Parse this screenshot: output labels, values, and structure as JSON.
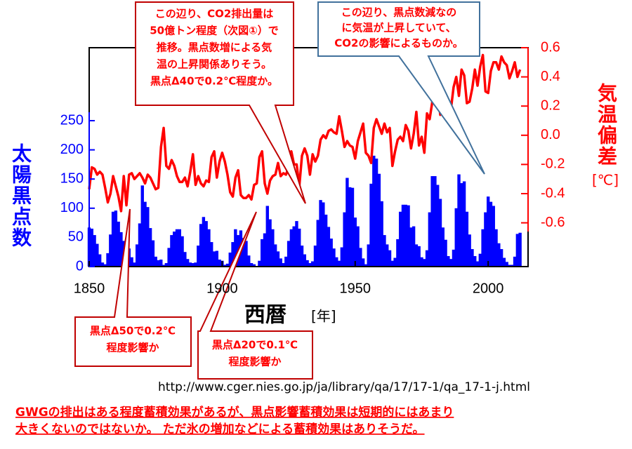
{
  "chart_data": {
    "type": "area",
    "xlabel": "西暦",
    "xlabel_unit": "[年]",
    "ylabel": "太陽黒点数",
    "y2label": "気温偏差",
    "y2label_unit": "[℃]",
    "x": [
      1850,
      1851,
      1852,
      1853,
      1854,
      1855,
      1856,
      1857,
      1858,
      1859,
      1860,
      1861,
      1862,
      1863,
      1864,
      1865,
      1866,
      1867,
      1868,
      1869,
      1870,
      1871,
      1872,
      1873,
      1874,
      1875,
      1876,
      1877,
      1878,
      1879,
      1880,
      1881,
      1882,
      1883,
      1884,
      1885,
      1886,
      1887,
      1888,
      1889,
      1890,
      1891,
      1892,
      1893,
      1894,
      1895,
      1896,
      1897,
      1898,
      1899,
      1900,
      1901,
      1902,
      1903,
      1904,
      1905,
      1906,
      1907,
      1908,
      1909,
      1910,
      1911,
      1912,
      1913,
      1914,
      1915,
      1916,
      1917,
      1918,
      1919,
      1920,
      1921,
      1922,
      1923,
      1924,
      1925,
      1926,
      1927,
      1928,
      1929,
      1930,
      1931,
      1932,
      1933,
      1934,
      1935,
      1936,
      1937,
      1938,
      1939,
      1940,
      1941,
      1942,
      1943,
      1944,
      1945,
      1946,
      1947,
      1948,
      1949,
      1950,
      1951,
      1952,
      1953,
      1954,
      1955,
      1956,
      1957,
      1958,
      1959,
      1960,
      1961,
      1962,
      1963,
      1964,
      1965,
      1966,
      1967,
      1968,
      1969,
      1970,
      1971,
      1972,
      1973,
      1974,
      1975,
      1976,
      1977,
      1978,
      1979,
      1980,
      1981,
      1982,
      1983,
      1984,
      1985,
      1986,
      1987,
      1988,
      1989,
      1990,
      1991,
      1992,
      1993,
      1994,
      1995,
      1996,
      1997,
      1998,
      1999,
      2000,
      2001,
      2002,
      2003,
      2004,
      2005,
      2006,
      2007,
      2008,
      2009,
      2010,
      2011,
      2012
    ],
    "series": [
      {
        "color": "#0000ff",
        "values": [
          67,
          65,
          54,
          39,
          21,
          7,
          4,
          23,
          55,
          94,
          96,
          77,
          59,
          44,
          47,
          31,
          16,
          7,
          38,
          74,
          139,
          111,
          102,
          66,
          45,
          17,
          11,
          12,
          3,
          6,
          32,
          54,
          60,
          64,
          64,
          52,
          25,
          13,
          7,
          6,
          7,
          36,
          73,
          85,
          78,
          64,
          42,
          26,
          27,
          12,
          10,
          3,
          5,
          24,
          42,
          64,
          54,
          62,
          49,
          44,
          19,
          6,
          4,
          1,
          10,
          47,
          57,
          104,
          81,
          64,
          38,
          26,
          14,
          6,
          17,
          44,
          64,
          69,
          78,
          65,
          36,
          21,
          11,
          6,
          9,
          36,
          80,
          114,
          110,
          89,
          68,
          48,
          31,
          16,
          10,
          33,
          93,
          152,
          136,
          135,
          84,
          69,
          32,
          14,
          4,
          38,
          142,
          190,
          185,
          159,
          112,
          54,
          38,
          28,
          10,
          15,
          47,
          94,
          106,
          106,
          105,
          67,
          69,
          38,
          35,
          16,
          13,
          28,
          93,
          155,
          155,
          140,
          116,
          67,
          46,
          18,
          13,
          29,
          100,
          158,
          143,
          146,
          94,
          55,
          30,
          18,
          9,
          22,
          64,
          93,
          120,
          111,
          104,
          64,
          40,
          30,
          15,
          8,
          3,
          3,
          17,
          56,
          58
        ]
      },
      {
        "color": "#ff0000",
        "type": "line",
        "axis": "y2",
        "values": [
          -0.37,
          -0.22,
          -0.23,
          -0.27,
          -0.25,
          -0.27,
          -0.36,
          -0.46,
          -0.4,
          -0.28,
          -0.35,
          -0.42,
          -0.52,
          -0.28,
          -0.48,
          -0.27,
          -0.26,
          -0.3,
          -0.28,
          -0.26,
          -0.29,
          -0.33,
          -0.27,
          -0.29,
          -0.33,
          -0.37,
          -0.36,
          -0.08,
          0.05,
          -0.21,
          -0.23,
          -0.17,
          -0.21,
          -0.28,
          -0.32,
          -0.32,
          -0.29,
          -0.35,
          -0.25,
          -0.13,
          -0.34,
          -0.28,
          -0.33,
          -0.35,
          -0.31,
          -0.32,
          -0.15,
          -0.11,
          -0.29,
          -0.18,
          -0.12,
          -0.18,
          -0.27,
          -0.39,
          -0.42,
          -0.29,
          -0.24,
          -0.41,
          -0.43,
          -0.43,
          -0.41,
          -0.44,
          -0.34,
          -0.33,
          -0.15,
          -0.11,
          -0.33,
          -0.4,
          -0.31,
          -0.28,
          -0.27,
          -0.19,
          -0.28,
          -0.26,
          -0.27,
          -0.22,
          -0.11,
          -0.2,
          -0.2,
          -0.35,
          -0.14,
          -0.09,
          -0.14,
          -0.27,
          -0.13,
          -0.18,
          -0.14,
          -0.03,
          0.0,
          -0.02,
          0.03,
          0.04,
          0.02,
          0.01,
          0.13,
          0.03,
          -0.08,
          -0.04,
          -0.07,
          -0.08,
          -0.16,
          -0.04,
          0.02,
          0.08,
          -0.12,
          -0.14,
          -0.19,
          0.05,
          0.11,
          0.06,
          0.01,
          0.08,
          0.02,
          0.05,
          -0.21,
          -0.11,
          -0.03,
          -0.01,
          -0.04,
          0.07,
          0.03,
          -0.09,
          0.01,
          0.16,
          -0.07,
          -0.01,
          -0.12,
          0.15,
          0.11,
          0.23,
          0.25,
          0.3,
          0.14,
          0.31,
          0.15,
          0.11,
          0.18,
          0.33,
          0.4,
          0.27,
          0.45,
          0.41,
          0.22,
          0.23,
          0.32,
          0.45,
          0.34,
          0.47,
          0.55,
          0.3,
          0.29,
          0.44,
          0.5,
          0.5,
          0.45,
          0.54,
          0.5,
          0.48,
          0.39,
          0.44,
          0.5,
          0.4,
          0.45
        ]
      }
    ],
    "xlim": [
      1850,
      2015
    ],
    "xticks": [
      1850,
      1900,
      1950,
      2000
    ],
    "ylim": [
      0,
      375
    ],
    "yticks": [
      0,
      50,
      100,
      150,
      200,
      250
    ],
    "y2lim": [
      -0.9,
      0.6
    ],
    "y2ticks": [
      -0.6,
      -0.4,
      -0.2,
      {
        "value": 0,
        "label": "0.0"
      },
      0.2,
      0.4,
      0.6
    ],
    "annotations": [
      {
        "lines": [
          "この辺り、CO2排出量は",
          "50億トン程度（次図①）で",
          "推移。黒点数増による気",
          "温の上昇関係ありそう。",
          "黒点Δ40で0.2℃程度か。"
        ]
      },
      {
        "lines": [
          "この辺り、黒点数減なの",
          "に気温が上昇していて、",
          "CO2の影響によるものか。"
        ]
      },
      {
        "lines": [
          "黒点Δ50で0.2℃",
          "程度影響か"
        ]
      },
      {
        "lines": [
          "黒点Δ20で0.1℃",
          "程度影響か"
        ]
      }
    ]
  },
  "source_url": "http://www.cger.nies.go.jp/ja/library/qa/17/17-1/qa_17-1-j.html",
  "note": [
    "GWGの排出はある程度蓄積効果があるが、黒点影響蓄積効果は短期的にはあまり",
    "大きくないのではないか。 ただ氷の増加などによる蓄積効果はありそうだ。"
  ]
}
